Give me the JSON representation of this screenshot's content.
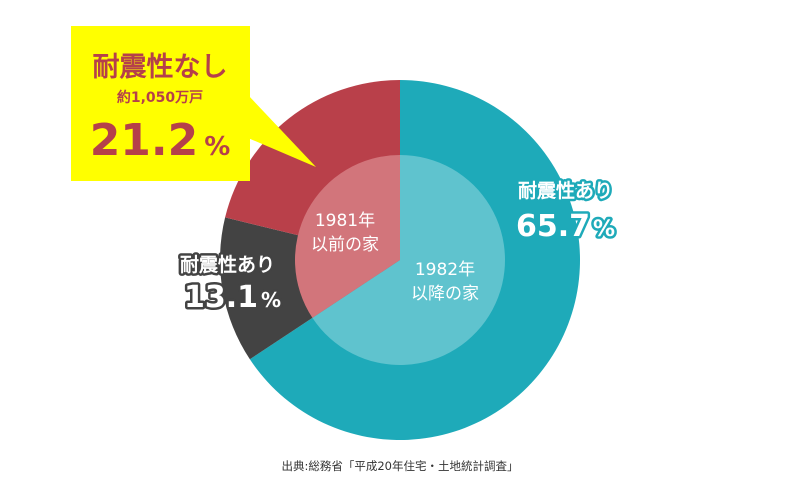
{
  "chart_data": {
    "type": "pie",
    "style": "donut with inner pie",
    "outer_ring": [
      {
        "label": "耐震性あり",
        "value": 65.7,
        "value_label": "65.7",
        "color": "#1eaab9"
      },
      {
        "label": "耐震性あり",
        "value": 13.1,
        "value_label": "13.1",
        "color": "#434343"
      },
      {
        "label": "耐震性なし",
        "value": 21.2,
        "value_label": "21.2",
        "color": "#b9404a",
        "sublabel": "約1,050万戸"
      }
    ],
    "inner_pie": [
      {
        "label_line1": "1982年",
        "label_line2": "以降の家",
        "value": 65.7,
        "color": "#5fc3ce"
      },
      {
        "label_line1": "1981年",
        "label_line2": "以前の家",
        "value": 34.3,
        "color": "#d2757b"
      }
    ],
    "unit": "%",
    "callout_color": "#ffff00",
    "source": "出典:総務省「平成20年住宅・土地統計調査」"
  }
}
